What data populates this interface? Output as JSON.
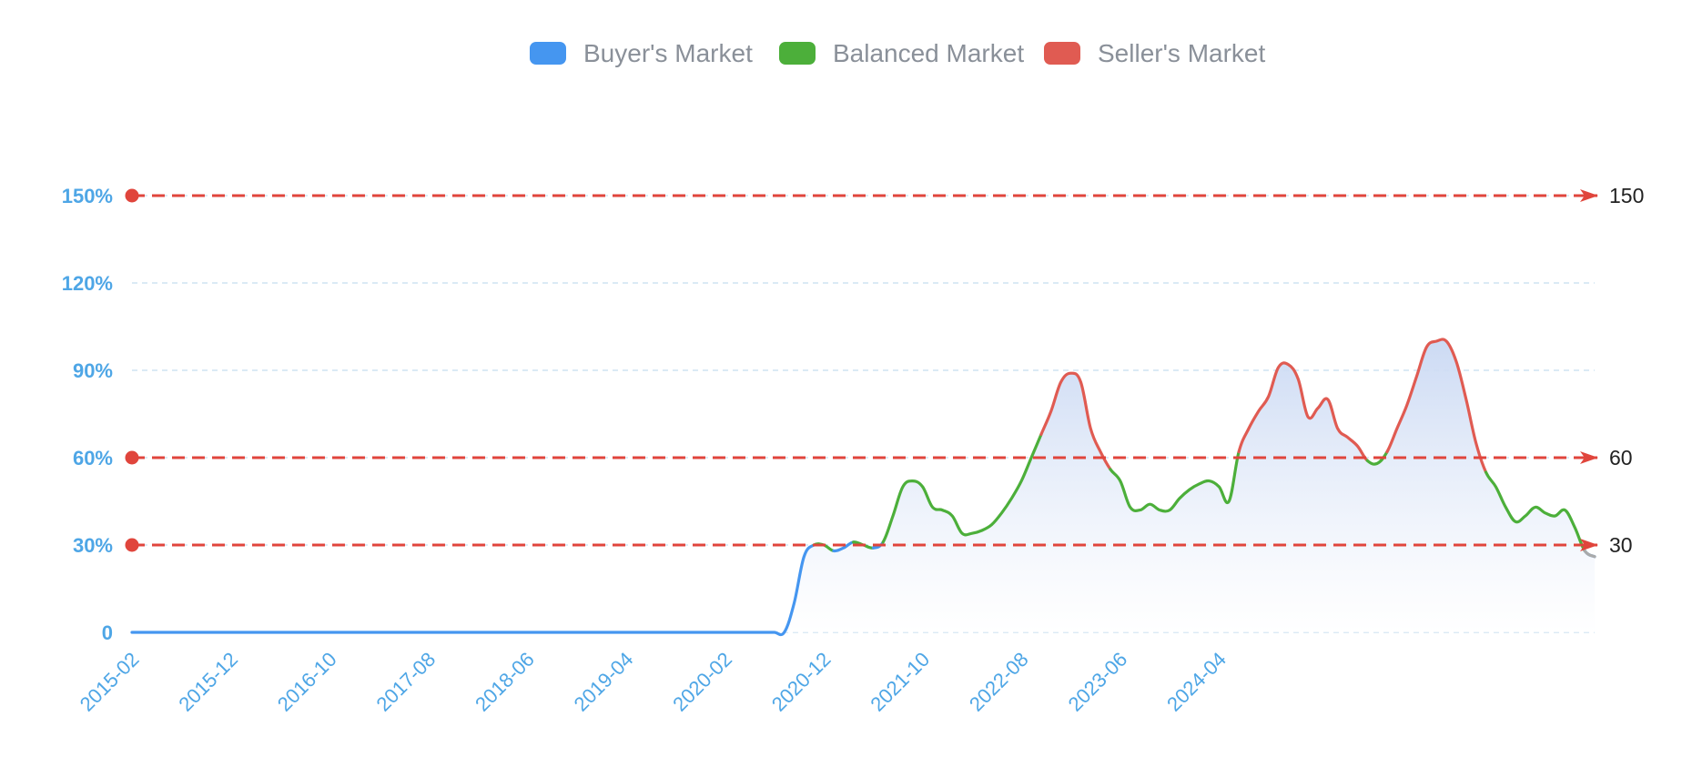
{
  "chart_data": {
    "type": "line",
    "title": "",
    "xlabel": "",
    "ylabel": "",
    "ylim": [
      0,
      150
    ],
    "y_ticks": [
      "0",
      "30%",
      "60%",
      "90%",
      "120%",
      "150%"
    ],
    "x_start": "2015-02",
    "x_ticks": [
      "2015-02",
      "2015-12",
      "2016-10",
      "2017-08",
      "2018-06",
      "2019-04",
      "2020-02",
      "2020-12",
      "2021-10",
      "2022-08",
      "2023-06",
      "2024-04"
    ],
    "x_last": "2025-02",
    "grid": true,
    "legend_position": "top-center",
    "legend": [
      {
        "name": "Buyer's Market",
        "color": "#4596f0"
      },
      {
        "name": "Balanced Market",
        "color": "#4caf3a"
      },
      {
        "name": "Seller's Market",
        "color": "#e05b52"
      }
    ],
    "mark_lines": [
      {
        "value": 150,
        "label": "150"
      },
      {
        "value": 60,
        "label": "60"
      },
      {
        "value": 30,
        "label": "30"
      }
    ],
    "colors": {
      "buyer": "#4596f0",
      "balanced": "#4caf3a",
      "seller": "#e05b52",
      "tail": "#aaaaaa",
      "mark_line": "#e0453c",
      "grid": "#cfe4f2",
      "area_top": "#c9d8f3"
    },
    "series": [
      {
        "values": [
          [
            0,
            0
          ],
          [
            1,
            0
          ],
          [
            2,
            0
          ],
          [
            3,
            0
          ],
          [
            4,
            0
          ],
          [
            5,
            0
          ],
          [
            6,
            0
          ],
          [
            7,
            0
          ],
          [
            8,
            0
          ],
          [
            9,
            0
          ],
          [
            10,
            0
          ],
          [
            11,
            0
          ],
          [
            12,
            0
          ],
          [
            13,
            0
          ],
          [
            14,
            0
          ],
          [
            15,
            0
          ],
          [
            16,
            0
          ],
          [
            17,
            0
          ],
          [
            18,
            0
          ],
          [
            19,
            0
          ],
          [
            20,
            0
          ],
          [
            21,
            0
          ],
          [
            22,
            0
          ],
          [
            23,
            0
          ],
          [
            24,
            0
          ],
          [
            25,
            0
          ],
          [
            26,
            0
          ],
          [
            27,
            0
          ],
          [
            28,
            0
          ],
          [
            29,
            0
          ],
          [
            30,
            0
          ],
          [
            31,
            0
          ],
          [
            32,
            0
          ],
          [
            33,
            0
          ],
          [
            34,
            0
          ],
          [
            35,
            0
          ],
          [
            36,
            0
          ],
          [
            37,
            0
          ],
          [
            38,
            0
          ],
          [
            39,
            0
          ],
          [
            40,
            0
          ],
          [
            41,
            0
          ],
          [
            42,
            0
          ],
          [
            43,
            0
          ],
          [
            44,
            0
          ],
          [
            45,
            0
          ],
          [
            46,
            0
          ],
          [
            47,
            0
          ],
          [
            48,
            0
          ],
          [
            49,
            0
          ],
          [
            50,
            0
          ],
          [
            51,
            0
          ],
          [
            52,
            0
          ],
          [
            53,
            0
          ],
          [
            54,
            0
          ],
          [
            55,
            0
          ],
          [
            56,
            0
          ],
          [
            57,
            0
          ],
          [
            58,
            0
          ],
          [
            59,
            0
          ],
          [
            60,
            0
          ],
          [
            61,
            0
          ],
          [
            62,
            0
          ],
          [
            63,
            0
          ],
          [
            64,
            0
          ],
          [
            65,
            0
          ],
          [
            66,
            0
          ],
          [
            67,
            10
          ],
          [
            68,
            26
          ],
          [
            69,
            30
          ],
          [
            70,
            30
          ],
          [
            71,
            28
          ],
          [
            72,
            29
          ],
          [
            73,
            31
          ],
          [
            74,
            30
          ],
          [
            75,
            29
          ],
          [
            76,
            31
          ],
          [
            77,
            40
          ],
          [
            78,
            50
          ],
          [
            79,
            52
          ],
          [
            80,
            50
          ],
          [
            81,
            43
          ],
          [
            82,
            42
          ],
          [
            83,
            40
          ],
          [
            84,
            34
          ],
          [
            85,
            34
          ],
          [
            86,
            35
          ],
          [
            87,
            37
          ],
          [
            88,
            41
          ],
          [
            89,
            46
          ],
          [
            90,
            52
          ],
          [
            91,
            60
          ],
          [
            92,
            68
          ],
          [
            93,
            76
          ],
          [
            94,
            86
          ],
          [
            95,
            89
          ],
          [
            96,
            86
          ],
          [
            97,
            70
          ],
          [
            98,
            62
          ],
          [
            99,
            56
          ],
          [
            100,
            52
          ],
          [
            101,
            43
          ],
          [
            102,
            42
          ],
          [
            103,
            44
          ],
          [
            104,
            42
          ],
          [
            105,
            42
          ],
          [
            106,
            46
          ],
          [
            107,
            49
          ],
          [
            108,
            51
          ],
          [
            109,
            52
          ],
          [
            110,
            50
          ],
          [
            111,
            45
          ],
          [
            112,
            62
          ],
          [
            113,
            70
          ],
          [
            114,
            76
          ],
          [
            115,
            81
          ],
          [
            116,
            91
          ],
          [
            117,
            92
          ],
          [
            118,
            87
          ],
          [
            119,
            74
          ],
          [
            120,
            77
          ],
          [
            121,
            80
          ],
          [
            122,
            70
          ],
          [
            123,
            67
          ],
          [
            124,
            64
          ],
          [
            125,
            59
          ],
          [
            126,
            58
          ],
          [
            127,
            62
          ],
          [
            128,
            70
          ],
          [
            129,
            78
          ],
          [
            130,
            88
          ],
          [
            131,
            98
          ],
          [
            132,
            100
          ],
          [
            133,
            100
          ],
          [
            134,
            93
          ],
          [
            135,
            80
          ],
          [
            136,
            65
          ],
          [
            137,
            55
          ],
          [
            138,
            50
          ],
          [
            139,
            43
          ],
          [
            140,
            38
          ],
          [
            141,
            40
          ],
          [
            142,
            43
          ],
          [
            143,
            41
          ],
          [
            144,
            40
          ],
          [
            145,
            42
          ],
          [
            146,
            36
          ],
          [
            147,
            28
          ],
          [
            148,
            26
          ]
        ]
      }
    ]
  }
}
